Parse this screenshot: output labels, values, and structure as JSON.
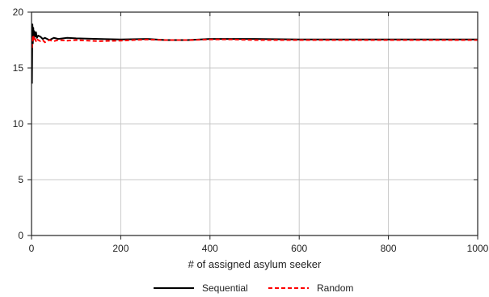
{
  "chart_data": {
    "type": "line",
    "title": "",
    "xlabel": "# of assigned asylum seeker",
    "ylabel": "",
    "xlim": [
      0,
      1000
    ],
    "ylim": [
      0,
      20
    ],
    "xticks": [
      0,
      200,
      400,
      600,
      800,
      1000
    ],
    "yticks": [
      0,
      5,
      10,
      15,
      20
    ],
    "grid": true,
    "legend_position": "bottom-center",
    "series": [
      {
        "name": "Sequential",
        "color": "#000000",
        "style": "solid",
        "x": [
          1,
          2,
          3,
          4,
          5,
          6,
          8,
          10,
          12,
          15,
          20,
          25,
          30,
          40,
          50,
          60,
          80,
          100,
          150,
          200,
          260,
          300,
          350,
          400,
          450,
          500,
          600,
          700,
          800,
          900,
          1000
        ],
        "y": [
          13.6,
          18.9,
          17.2,
          18.6,
          17.6,
          18.3,
          17.8,
          18.2,
          17.7,
          17.9,
          17.8,
          17.6,
          17.7,
          17.5,
          17.7,
          17.6,
          17.7,
          17.65,
          17.6,
          17.55,
          17.6,
          17.5,
          17.5,
          17.6,
          17.6,
          17.6,
          17.55,
          17.55,
          17.55,
          17.55,
          17.55
        ]
      },
      {
        "name": "Random",
        "color": "#ff0000",
        "style": "dashed",
        "x": [
          1,
          2,
          3,
          4,
          5,
          6,
          8,
          10,
          12,
          15,
          20,
          25,
          30,
          40,
          50,
          60,
          80,
          100,
          150,
          200,
          260,
          300,
          350,
          400,
          450,
          500,
          600,
          700,
          800,
          900,
          1000
        ],
        "y": [
          16.8,
          17.3,
          17.9,
          17.4,
          17.8,
          17.5,
          17.6,
          17.4,
          17.6,
          17.5,
          17.4,
          17.5,
          17.3,
          17.5,
          17.4,
          17.5,
          17.45,
          17.5,
          17.4,
          17.45,
          17.55,
          17.5,
          17.5,
          17.55,
          17.55,
          17.5,
          17.5,
          17.5,
          17.5,
          17.5,
          17.5
        ]
      }
    ]
  }
}
